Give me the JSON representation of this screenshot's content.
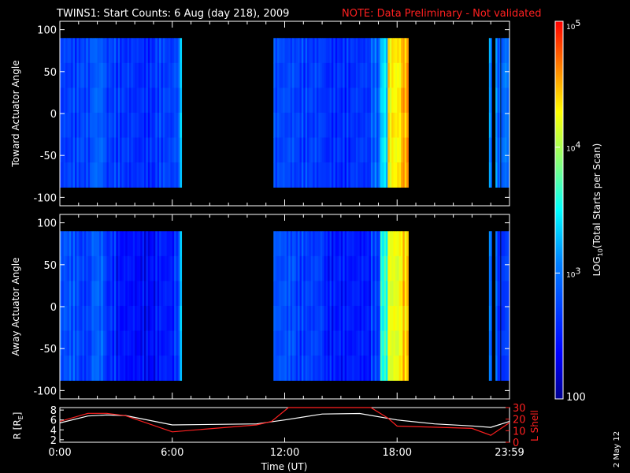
{
  "title": {
    "main": "TWINS1: Start Counts:  6 Aug (day 218), 2009",
    "note": "NOTE: Data Preliminary - Not validated"
  },
  "stamp": "2 May 12",
  "colors": {
    "background": "#000000",
    "note": "#ff2020",
    "r_line": "#ffffff",
    "lshell_line": "#ff2020"
  },
  "chart_data": [
    {
      "type": "heatmap",
      "name": "toward",
      "ylabel": "Toward Actuator Angle",
      "ylim": [
        -110,
        110
      ],
      "yticks": [
        100,
        50,
        0,
        -50,
        -100
      ],
      "xlim": [
        0,
        24
      ],
      "coverage_angle": [
        -88,
        90
      ],
      "data_intervals_ut": [
        [
          0.0,
          6.5
        ],
        [
          11.4,
          18.6
        ],
        [
          22.9,
          23.05
        ],
        [
          23.25,
          23.5
        ],
        [
          23.55,
          24.0
        ]
      ],
      "scan_profile": [
        {
          "t": 0.0,
          "v": 2.7
        },
        {
          "t": 0.9,
          "v": 2.75
        },
        {
          "t": 1.7,
          "v": 2.9
        },
        {
          "t": 2.4,
          "v": 2.7
        },
        {
          "t": 3.0,
          "v": 2.65
        },
        {
          "t": 4.0,
          "v": 2.6
        },
        {
          "t": 5.0,
          "v": 2.7
        },
        {
          "t": 6.0,
          "v": 2.8
        },
        {
          "t": 6.3,
          "v": 3.4
        },
        {
          "t": 11.4,
          "v": 2.75
        },
        {
          "t": 12.5,
          "v": 2.7
        },
        {
          "t": 14.0,
          "v": 2.6
        },
        {
          "t": 15.5,
          "v": 2.65
        },
        {
          "t": 16.5,
          "v": 2.9
        },
        {
          "t": 17.0,
          "v": 3.4
        },
        {
          "t": 17.5,
          "v": 4.3
        },
        {
          "t": 18.2,
          "v": 4.5
        },
        {
          "t": 22.9,
          "v": 3.0
        },
        {
          "t": 23.3,
          "v": 2.9
        },
        {
          "t": 23.6,
          "v": 3.0
        }
      ]
    },
    {
      "type": "heatmap",
      "name": "away",
      "ylabel": "Away Actuator Angle",
      "ylim": [
        -110,
        110
      ],
      "yticks": [
        100,
        50,
        0,
        -50,
        -100
      ],
      "xlim": [
        0,
        24
      ],
      "xticks": [
        "0:00",
        "6:00",
        "12:00",
        "18:00",
        "23:59"
      ],
      "coverage_angle": [
        -88,
        90
      ],
      "data_intervals_ut": [
        [
          0.0,
          6.5
        ],
        [
          11.4,
          18.6
        ],
        [
          22.9,
          23.05
        ],
        [
          23.25,
          23.5
        ],
        [
          23.55,
          24.0
        ]
      ],
      "scan_profile": [
        {
          "t": 0.0,
          "v": 2.8
        },
        {
          "t": 0.9,
          "v": 2.7
        },
        {
          "t": 1.7,
          "v": 2.9
        },
        {
          "t": 2.4,
          "v": 2.6
        },
        {
          "t": 3.0,
          "v": 2.45
        },
        {
          "t": 4.0,
          "v": 2.4
        },
        {
          "t": 5.0,
          "v": 2.5
        },
        {
          "t": 6.0,
          "v": 2.7
        },
        {
          "t": 6.3,
          "v": 3.3
        },
        {
          "t": 11.4,
          "v": 2.8
        },
        {
          "t": 12.5,
          "v": 2.7
        },
        {
          "t": 14.0,
          "v": 2.5
        },
        {
          "t": 15.5,
          "v": 2.5
        },
        {
          "t": 16.5,
          "v": 2.7
        },
        {
          "t": 17.0,
          "v": 3.6
        },
        {
          "t": 17.5,
          "v": 4.2
        },
        {
          "t": 18.2,
          "v": 4.4
        },
        {
          "t": 22.9,
          "v": 2.9
        },
        {
          "t": 23.3,
          "v": 2.6
        },
        {
          "t": 23.6,
          "v": 2.7
        }
      ]
    },
    {
      "type": "line",
      "name": "orbit",
      "xlabel": "Time (UT)",
      "ylabel": "R [R",
      "ylabel_sub": "E",
      "ylabel_end": "]",
      "ylim": [
        1.5,
        8.5
      ],
      "yticks": [
        8,
        6,
        4,
        2
      ],
      "y2label": "L Shell",
      "y2lim": [
        0,
        30
      ],
      "y2ticks": [
        30,
        20,
        10,
        0
      ],
      "series": [
        {
          "axis": "left",
          "color": "#ffffff",
          "x": [
            0,
            1.5,
            2.5,
            3.5,
            6.0,
            10.5,
            12.0,
            14.0,
            16.0,
            18.0,
            20.0,
            22.0,
            23.0,
            24.0
          ],
          "y": [
            5.4,
            6.8,
            7.0,
            6.9,
            5.0,
            5.2,
            6.0,
            7.2,
            7.3,
            6.0,
            5.2,
            4.8,
            4.5,
            5.7
          ]
        },
        {
          "axis": "right",
          "color": "#ff2020",
          "x": [
            0,
            1.5,
            2.5,
            3.5,
            6.0,
            10.5,
            11.3,
            12.2,
            16.6,
            17.5,
            18.0,
            20.0,
            22.0,
            23.0,
            24.0
          ],
          "y": [
            18,
            25,
            25,
            23,
            9,
            15,
            18,
            30,
            30,
            21,
            14,
            13,
            12,
            6,
            17
          ]
        }
      ]
    },
    {
      "type": "colorbar",
      "name": "colorbar",
      "label_pre": "LOG",
      "label_sub": "10",
      "label_post": "(Total Starts per Scan)",
      "scale": "log",
      "range": [
        100,
        100000
      ],
      "tick_labels": [
        "10",
        "10",
        "10",
        "100"
      ],
      "tick_exponents": [
        "5",
        "4",
        "3",
        ""
      ],
      "tick_values": [
        100000,
        10000,
        1000,
        100
      ]
    }
  ]
}
